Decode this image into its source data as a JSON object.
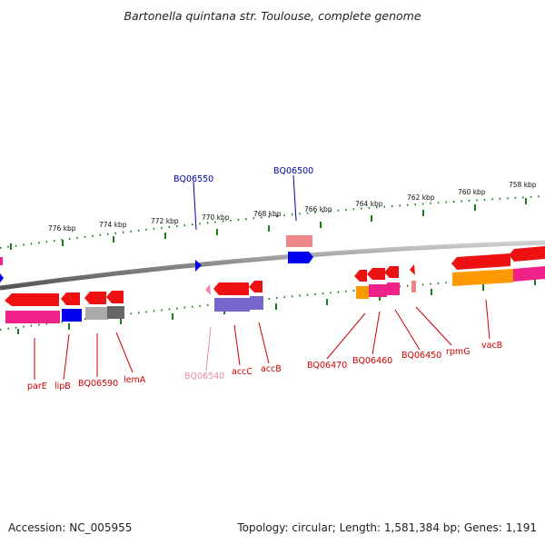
{
  "title": "Bartonella quintana str. Toulouse, complete genome",
  "footer": {
    "accession": "Accession: NC_005955",
    "summary": "Topology: circular; Length: 1,581,384 bp; Genes: 1,191"
  },
  "scale_labels": [
    "776 kbp",
    "774 kbp",
    "772 kbp",
    "770 kbp",
    "768 kbp",
    "766 kbp",
    "764 kbp",
    "762 kbp",
    "760 kbp",
    "758 kbp"
  ],
  "gene_labels": {
    "BQ06550": "BQ06550",
    "BQ06500": "BQ06500",
    "parE": "parE",
    "lipB": "lipB",
    "BQ06590": "BQ06590",
    "lemA": "lemA",
    "BQ06540": "BQ06540",
    "accC": "accC",
    "accB": "accB",
    "BQ06470": "BQ06470",
    "BQ06460": "BQ06460",
    "BQ06450": "BQ06450",
    "rpmG": "rpmG",
    "vacB": "vacB"
  },
  "colors": {
    "backbone": "#888888",
    "tick": "#1f7a1f",
    "forward_gene": "#ee1111",
    "cog_magenta": "#ee2288",
    "cog_blue": "#0000ee",
    "cog_gray": "#aaaaaa",
    "cog_darkgray": "#666666",
    "cog_purple": "#7766cc",
    "cog_orange": "#ff9900",
    "cog_pink": "#ee8888",
    "label_red": "#cc0000",
    "label_blue": "#0000aa",
    "label_pink": "#ee88aa"
  }
}
